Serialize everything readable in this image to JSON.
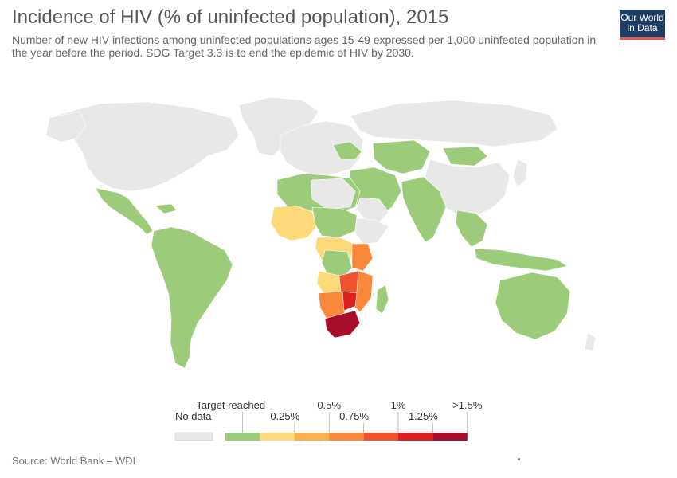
{
  "header": {
    "title": "Incidence of HIV (% of uninfected population), 2015",
    "subtitle": "Number of new HIV infections among uninfected populations ages 15-49 expressed per 1,000 uninfected population in the year before the period. SDG Target 3.3 is to end the epidemic of HIV by 2030."
  },
  "logo": {
    "line1": "Our World",
    "line2": "in Data"
  },
  "legend": {
    "no_data_label": "No data",
    "no_data_color": "#e8e8e8",
    "upper_labels": [
      "Target reached",
      "0.5%",
      "1%",
      ">1.5%"
    ],
    "lower_labels": [
      "0.25%",
      "0.75%",
      "1.25%"
    ],
    "bins": [
      {
        "color": "#9ccc7a"
      },
      {
        "color": "#fdd97a"
      },
      {
        "color": "#fbb04b"
      },
      {
        "color": "#f9883a"
      },
      {
        "color": "#f1522f"
      },
      {
        "color": "#dd2021"
      },
      {
        "color": "#a80d2a"
      }
    ]
  },
  "colors": {
    "no_data": "#e8e8e8",
    "target": "#9ccc7a",
    "b1": "#fdd97a",
    "b2": "#fbb04b",
    "b3": "#f9883a",
    "b4": "#f1522f",
    "b5": "#dd2021",
    "b6": "#a80d2a"
  },
  "footer": {
    "source": "Source: World Bank – WDI"
  }
}
